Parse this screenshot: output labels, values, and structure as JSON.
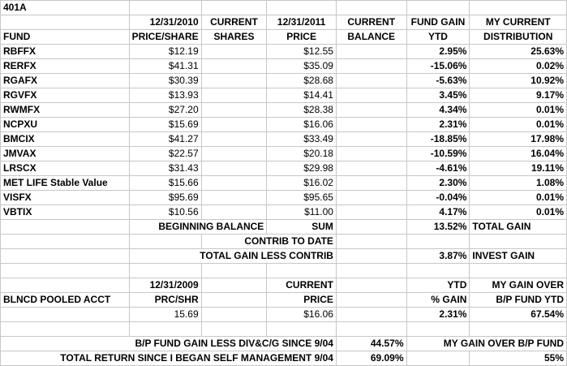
{
  "title": "401A",
  "header": {
    "date_price": "12/31/2010",
    "current_shares_1": "CURRENT",
    "date_current": "12/31/2011",
    "current_balance_1": "CURRENT",
    "fund_gain_1": "FUND GAIN",
    "my_current_1": "MY CURRENT",
    "fund": "FUND",
    "price_share": "PRICE/SHARE",
    "shares": "SHARES",
    "current_price_1": "CURRENT",
    "price": "PRICE",
    "balance": "BALANCE",
    "ytd": "YTD",
    "distribution": "DISTRIBUTION"
  },
  "funds": [
    {
      "fund": "RBFFX",
      "price_share": "$12.19",
      "shares": "",
      "current_price": "$12.55",
      "balance": "",
      "gain_ytd": "2.95%",
      "distribution": "25.63%"
    },
    {
      "fund": "RERFX",
      "price_share": "$41.31",
      "shares": "",
      "current_price": "$35.09",
      "balance": "",
      "gain_ytd": "-15.06%",
      "distribution": "0.02%"
    },
    {
      "fund": "RGAFX",
      "price_share": "$30.39",
      "shares": "",
      "current_price": "$28.68",
      "balance": "",
      "gain_ytd": "-5.63%",
      "distribution": "10.92%"
    },
    {
      "fund": "RGVFX",
      "price_share": "$13.93",
      "shares": "",
      "current_price": "$14.41",
      "balance": "",
      "gain_ytd": "3.45%",
      "distribution": "9.17%"
    },
    {
      "fund": "RWMFX",
      "price_share": "$27.20",
      "shares": "",
      "current_price": "$28.38",
      "balance": "",
      "gain_ytd": "4.34%",
      "distribution": "0.01%"
    },
    {
      "fund": "NCPXU",
      "price_share": "$15.69",
      "shares": "",
      "current_price": "$16.06",
      "balance": "",
      "gain_ytd": "2.31%",
      "distribution": "0.01%"
    },
    {
      "fund": "BMCIX",
      "price_share": "$41.27",
      "shares": "",
      "current_price": "$33.49",
      "balance": "",
      "gain_ytd": "-18.85%",
      "distribution": "17.98%"
    },
    {
      "fund": "JMVAX",
      "price_share": "$22.57",
      "shares": "",
      "current_price": "$20.18",
      "balance": "",
      "gain_ytd": "-10.59%",
      "distribution": "16.04%"
    },
    {
      "fund": "LRSCX",
      "price_share": "$31.43",
      "shares": "",
      "current_price": "$29.98",
      "balance": "",
      "gain_ytd": "-4.61%",
      "distribution": "19.11%"
    },
    {
      "fund": "MET LIFE Stable Value",
      "price_share": "$15.66",
      "shares": "",
      "current_price": "$16.02",
      "balance": "",
      "gain_ytd": "2.30%",
      "distribution": "1.08%"
    },
    {
      "fund": "VISFX",
      "price_share": "$95.69",
      "shares": "",
      "current_price": "$95.65",
      "balance": "",
      "gain_ytd": "-0.04%",
      "distribution": "0.01%"
    },
    {
      "fund": "VBTIX",
      "price_share": "$10.56",
      "shares": "",
      "current_price": "$11.00",
      "balance": "",
      "gain_ytd": "4.17%",
      "distribution": "0.01%"
    }
  ],
  "summary": {
    "beginning_balance": "BEGINNING BALANCE",
    "sum": "SUM",
    "total_gain_pct": "13.52%",
    "total_gain_label": "TOTAL GAIN",
    "contrib_to_date": "CONTRIB TO DATE",
    "total_gain_less_contrib": "TOTAL GAIN LESS CONTRIB",
    "invest_gain_pct": "3.87%",
    "invest_gain_label": "INVEST GAIN"
  },
  "pooled": {
    "date": "12/31/2009",
    "current_label": "CURRENT",
    "ytd_label": "YTD",
    "my_gain_over": "MY GAIN OVER",
    "account": "BLNCD POOLED ACCT",
    "prc_shr": "PRC/SHR",
    "price_label": "PRICE",
    "pct_gain": "% GAIN",
    "bp_fund_ytd": "B/P FUND YTD",
    "prc_value": "15.69",
    "price_value": "$16.06",
    "ytd_value": "2.31%",
    "gain_over_value": "67.54%"
  },
  "footer": {
    "bp_fund_gain_label": "B/P FUND GAIN LESS DIV&C/G SINCE 9/04",
    "bp_fund_gain_value": "44.57%",
    "my_gain_over_bp_label": "MY GAIN OVER  B/P FUND",
    "total_return_label": "TOTAL RETURN SINCE I BEGAN SELF MANAGEMENT 9/04",
    "total_return_value": "69.09%",
    "my_gain_over_bp_value": "55%"
  }
}
